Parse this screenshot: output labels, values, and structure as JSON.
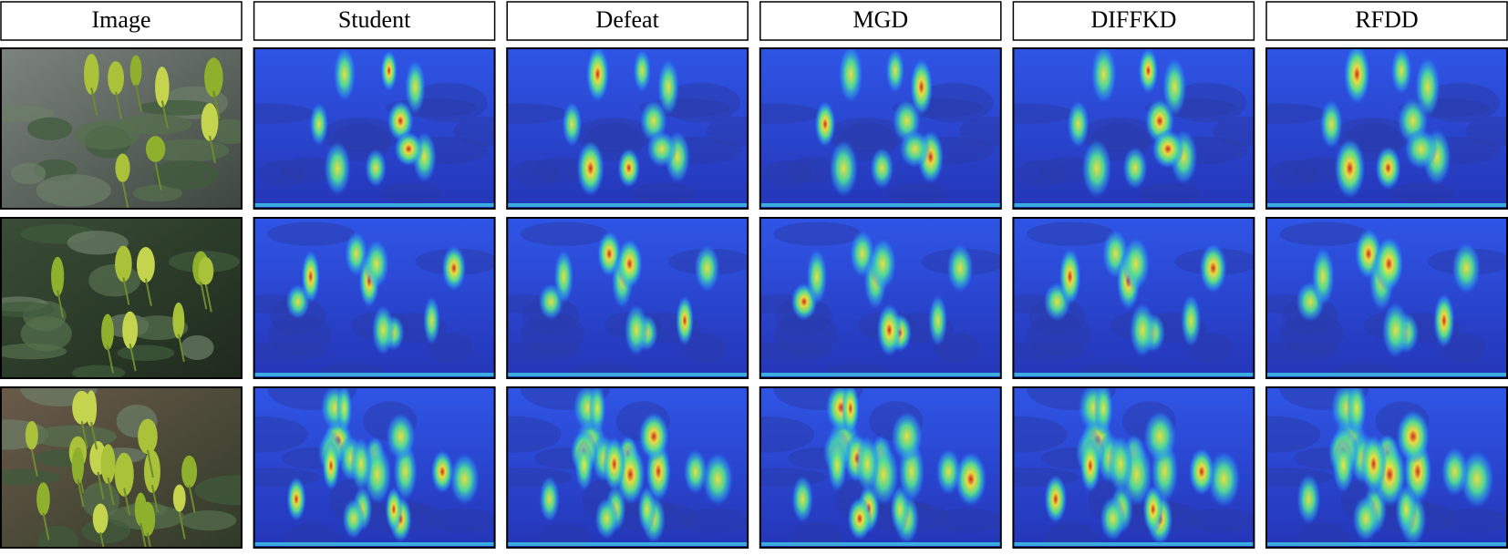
{
  "headers": [
    "Image",
    "Student",
    "Defeat",
    "MGD",
    "DIFFKD",
    "RFDD"
  ]
}
